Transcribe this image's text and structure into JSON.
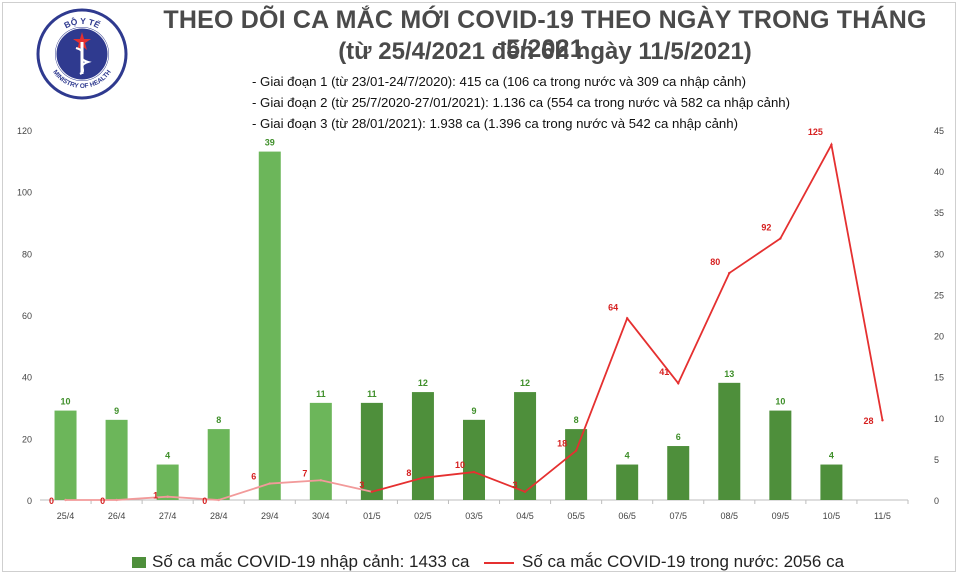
{
  "header": {
    "title": "THEO DÕI CA MẮC MỚI COVID-19 THEO NGÀY TRONG THÁNG 5/2021",
    "subtitle": "(từ 25/4/2021 đến 6h ngày 11/5/2021)"
  },
  "logo": {
    "text_top": "BỘ Y TẾ",
    "text_bottom": "MINISTRY OF HEALTH"
  },
  "phases": [
    "- Giai đoạn 1 (từ 23/01-24/7/2020): 415 ca (106 ca trong nước và 309 ca nhập cảnh)",
    "- Giai đoạn 2 (từ 25/7/2020-27/01/2021): 1.136 ca (554 ca trong nước và 582 ca nhập cảnh)",
    "- Giai đoạn 3 (từ 28/01/2021): 1.938 ca (1.396 ca trong nước và 542 ca nhập cảnh)"
  ],
  "legend": {
    "bars": "Số ca mắc COVID-19 nhập cảnh: 1433 ca",
    "line": "Số ca mắc COVID-19 trong nước: 2056 ca"
  },
  "colors": {
    "bar_light": "#6cb65a",
    "bar_dark": "#4e8f3b",
    "bar_label": "#3f8f2a",
    "line_light": "#f29a9a",
    "line": "#e53030",
    "line_label": "#d62020"
  },
  "chart_data": {
    "type": "bar",
    "categories": [
      "25/4",
      "26/4",
      "27/4",
      "28/4",
      "29/4",
      "30/4",
      "01/5",
      "02/5",
      "03/5",
      "04/5",
      "05/5",
      "06/5",
      "07/5",
      "08/5",
      "09/5",
      "10/5",
      "11/5"
    ],
    "y_left": {
      "ticks": [
        0,
        20,
        40,
        60,
        80,
        100,
        120
      ],
      "range": [
        0,
        120
      ]
    },
    "y_right": {
      "ticks": [
        0,
        5,
        10,
        15,
        20,
        25,
        30,
        35,
        40,
        45
      ],
      "range": [
        0,
        45
      ]
    },
    "series": [
      {
        "name": "Số ca mắc COVID-19 nhập cảnh: 1433 ca",
        "type": "bar",
        "axis": "left",
        "values": [
          29,
          26,
          11.5,
          23,
          113,
          31.5,
          31.5,
          35,
          26,
          35,
          23,
          11.5,
          17.5,
          38,
          29,
          11.5,
          null
        ],
        "labels": [
          "10",
          "9",
          "4",
          "8",
          "39",
          "11",
          "11",
          "12",
          "9",
          "12",
          "8",
          "4",
          "6",
          "13",
          "10",
          "4",
          ""
        ]
      },
      {
        "name": "Số ca mắc COVID-19 trong nước: 2056 ca",
        "type": "line",
        "axis": "right",
        "values": [
          0,
          0,
          0.4,
          0,
          2,
          2.4,
          1,
          2.7,
          3.4,
          1,
          6,
          22.1,
          14.2,
          27.6,
          31.8,
          43.2,
          9.7
        ],
        "labels": [
          "0",
          "0",
          "1",
          "0",
          "6",
          "7",
          "3",
          "8",
          "10",
          "3",
          "18",
          "64",
          "41",
          "80",
          "92",
          "125",
          "28"
        ]
      }
    ],
    "grid": false
  }
}
